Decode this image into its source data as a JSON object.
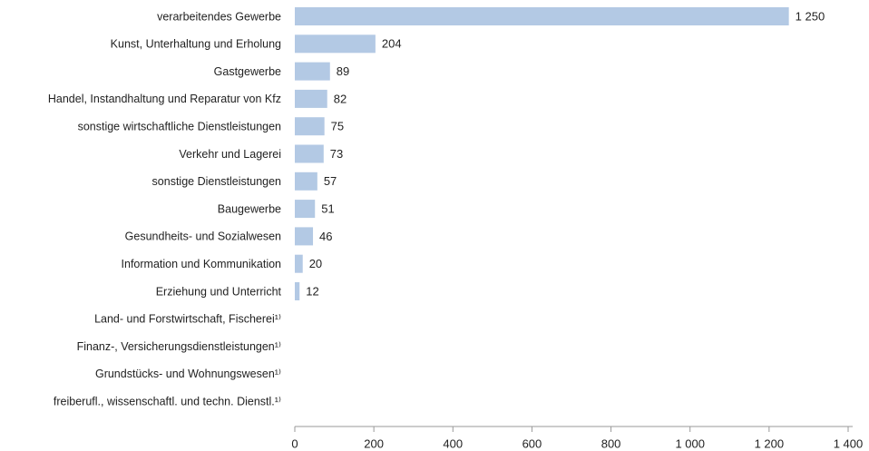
{
  "chart_data": {
    "type": "hbar",
    "categories": [
      "verarbeitendes Gewerbe",
      "Kunst, Unterhaltung und Erholung",
      "Gastgewerbe",
      "Handel, Instandhaltung und Reparatur von Kfz",
      "sonstige wirtschaftliche Dienstleistungen",
      "Verkehr und Lagerei",
      "sonstige Dienstleistungen",
      "Baugewerbe",
      "Gesundheits- und Sozialwesen",
      "Information und Kommunikation",
      "Erziehung und Unterricht",
      "Land- und Forstwirtschaft, Fischerei¹⁾",
      "Finanz-, Versicherungsdienstleistungen¹⁾",
      "Grundstücks- und Wohnungswesen¹⁾",
      "freiberufl., wissenschaftl. und techn. Dienstl.¹⁾"
    ],
    "values": [
      1250,
      204,
      89,
      82,
      75,
      73,
      57,
      51,
      46,
      20,
      12,
      null,
      null,
      null,
      null
    ],
    "value_labels": [
      "1 250",
      "204",
      "89",
      "82",
      "75",
      "73",
      "57",
      "51",
      "46",
      "20",
      "12",
      null,
      null,
      null,
      null
    ],
    "color": "#b3c9e4",
    "xlim": [
      0,
      1400
    ],
    "xticks": [
      0,
      200,
      400,
      600,
      800,
      {
        "value": 1000,
        "label": "1 000"
      },
      {
        "value": 1200,
        "label": "1 200"
      },
      {
        "value": 1400,
        "label": "1 400"
      }
    ]
  }
}
